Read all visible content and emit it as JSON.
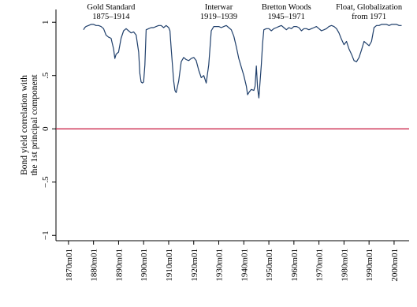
{
  "chart_data": {
    "type": "line",
    "title": "",
    "ylabel_lines": [
      "Bond yield correlation with",
      "the 1st principal component"
    ],
    "xlabel": "",
    "ylim": [
      -1.05,
      1.12
    ],
    "xlim": [
      1865,
      2006
    ],
    "yticks": [
      {
        "value": -1,
        "label": "−1"
      },
      {
        "value": -0.5,
        "label": "−.5"
      },
      {
        "value": 0,
        "label": "0"
      },
      {
        "value": 0.5,
        "label": ".5"
      },
      {
        "value": 1,
        "label": "1"
      }
    ],
    "xticks": [
      {
        "value": 1870,
        "label": "1870m01"
      },
      {
        "value": 1880,
        "label": "1880m01"
      },
      {
        "value": 1890,
        "label": "1890m01"
      },
      {
        "value": 1900,
        "label": "1900m01"
      },
      {
        "value": 1910,
        "label": "1910m01"
      },
      {
        "value": 1920,
        "label": "1920m01"
      },
      {
        "value": 1930,
        "label": "1930m01"
      },
      {
        "value": 1940,
        "label": "1940m01"
      },
      {
        "value": 1950,
        "label": "1950m01"
      },
      {
        "value": 1960,
        "label": "1960m01"
      },
      {
        "value": 1970,
        "label": "1970m01"
      },
      {
        "value": 1980,
        "label": "1980m01"
      },
      {
        "value": 1990,
        "label": "1990m01"
      },
      {
        "value": 2000,
        "label": "2000m01"
      }
    ],
    "reference_line": {
      "y": 0,
      "color": "#c8143c"
    },
    "line_color": "#1f3f6b",
    "periods": [
      {
        "name": "Gold Standard",
        "range": "1875–1914",
        "x_center": 1887
      },
      {
        "name": "Interwar",
        "range": "1919–1939",
        "x_center": 1930
      },
      {
        "name": "Bretton Woods",
        "range": "1945–1971",
        "x_center": 1957
      },
      {
        "name": "Float, Globalization",
        "range": "from 1971",
        "x_center": 1990
      }
    ],
    "series": [
      {
        "x": [
          1876,
          1876.5,
          1877,
          1878,
          1879,
          1880,
          1881,
          1882,
          1883,
          1884,
          1885,
          1886,
          1887,
          1888,
          1888.5,
          1889,
          1890,
          1891,
          1892,
          1893,
          1894,
          1895,
          1896,
          1897,
          1898,
          1898.5,
          1899,
          1899.5,
          1900,
          1900.5,
          1901,
          1902,
          1903,
          1904,
          1905,
          1906,
          1907,
          1908,
          1909,
          1910,
          1910.5,
          1911,
          1912,
          1912.5,
          1913,
          1914,
          1915,
          1916,
          1917,
          1918,
          1919,
          1920,
          1921,
          1922,
          1923,
          1924,
          1925,
          1926,
          1927,
          1928,
          1929,
          1930,
          1931,
          1932,
          1933,
          1934,
          1935,
          1936,
          1937,
          1938,
          1939,
          1940,
          1941,
          1941.5,
          1942,
          1943,
          1944,
          1944.5,
          1945,
          1945.5,
          1946,
          1946.5,
          1947,
          1947.5,
          1948,
          1949,
          1950,
          1951,
          1952,
          1953,
          1954,
          1955,
          1956,
          1957,
          1958,
          1959,
          1960,
          1961,
          1962,
          1963,
          1964,
          1965,
          1966,
          1967,
          1968,
          1969,
          1970,
          1971,
          1972,
          1973,
          1974,
          1975,
          1976,
          1977,
          1978,
          1979,
          1980,
          1981,
          1982,
          1983,
          1984,
          1985,
          1986,
          1987,
          1988,
          1989,
          1990,
          1991,
          1992,
          1993,
          1994,
          1995,
          1996,
          1997,
          1998,
          1999,
          2000,
          2001,
          2002,
          2003
        ],
        "y": [
          0.93,
          0.95,
          0.96,
          0.97,
          0.98,
          0.98,
          0.97,
          0.97,
          0.96,
          0.94,
          0.88,
          0.86,
          0.85,
          0.75,
          0.66,
          0.7,
          0.72,
          0.85,
          0.92,
          0.94,
          0.92,
          0.9,
          0.91,
          0.88,
          0.72,
          0.52,
          0.44,
          0.43,
          0.44,
          0.6,
          0.93,
          0.94,
          0.95,
          0.95,
          0.96,
          0.97,
          0.97,
          0.95,
          0.97,
          0.95,
          0.92,
          0.75,
          0.45,
          0.36,
          0.34,
          0.45,
          0.63,
          0.67,
          0.65,
          0.64,
          0.66,
          0.67,
          0.64,
          0.55,
          0.48,
          0.5,
          0.43,
          0.6,
          0.92,
          0.96,
          0.96,
          0.96,
          0.95,
          0.96,
          0.97,
          0.95,
          0.93,
          0.87,
          0.77,
          0.66,
          0.58,
          0.5,
          0.4,
          0.32,
          0.34,
          0.37,
          0.36,
          0.4,
          0.59,
          0.38,
          0.29,
          0.45,
          0.6,
          0.8,
          0.93,
          0.94,
          0.94,
          0.92,
          0.94,
          0.95,
          0.96,
          0.97,
          0.95,
          0.93,
          0.95,
          0.94,
          0.96,
          0.96,
          0.95,
          0.92,
          0.94,
          0.94,
          0.93,
          0.94,
          0.95,
          0.96,
          0.94,
          0.92,
          0.93,
          0.94,
          0.96,
          0.97,
          0.96,
          0.94,
          0.9,
          0.84,
          0.79,
          0.82,
          0.75,
          0.7,
          0.64,
          0.63,
          0.67,
          0.74,
          0.82,
          0.8,
          0.78,
          0.82,
          0.95,
          0.97,
          0.97,
          0.98,
          0.98,
          0.98,
          0.97,
          0.98,
          0.98,
          0.98,
          0.97,
          0.97
        ]
      }
    ]
  }
}
